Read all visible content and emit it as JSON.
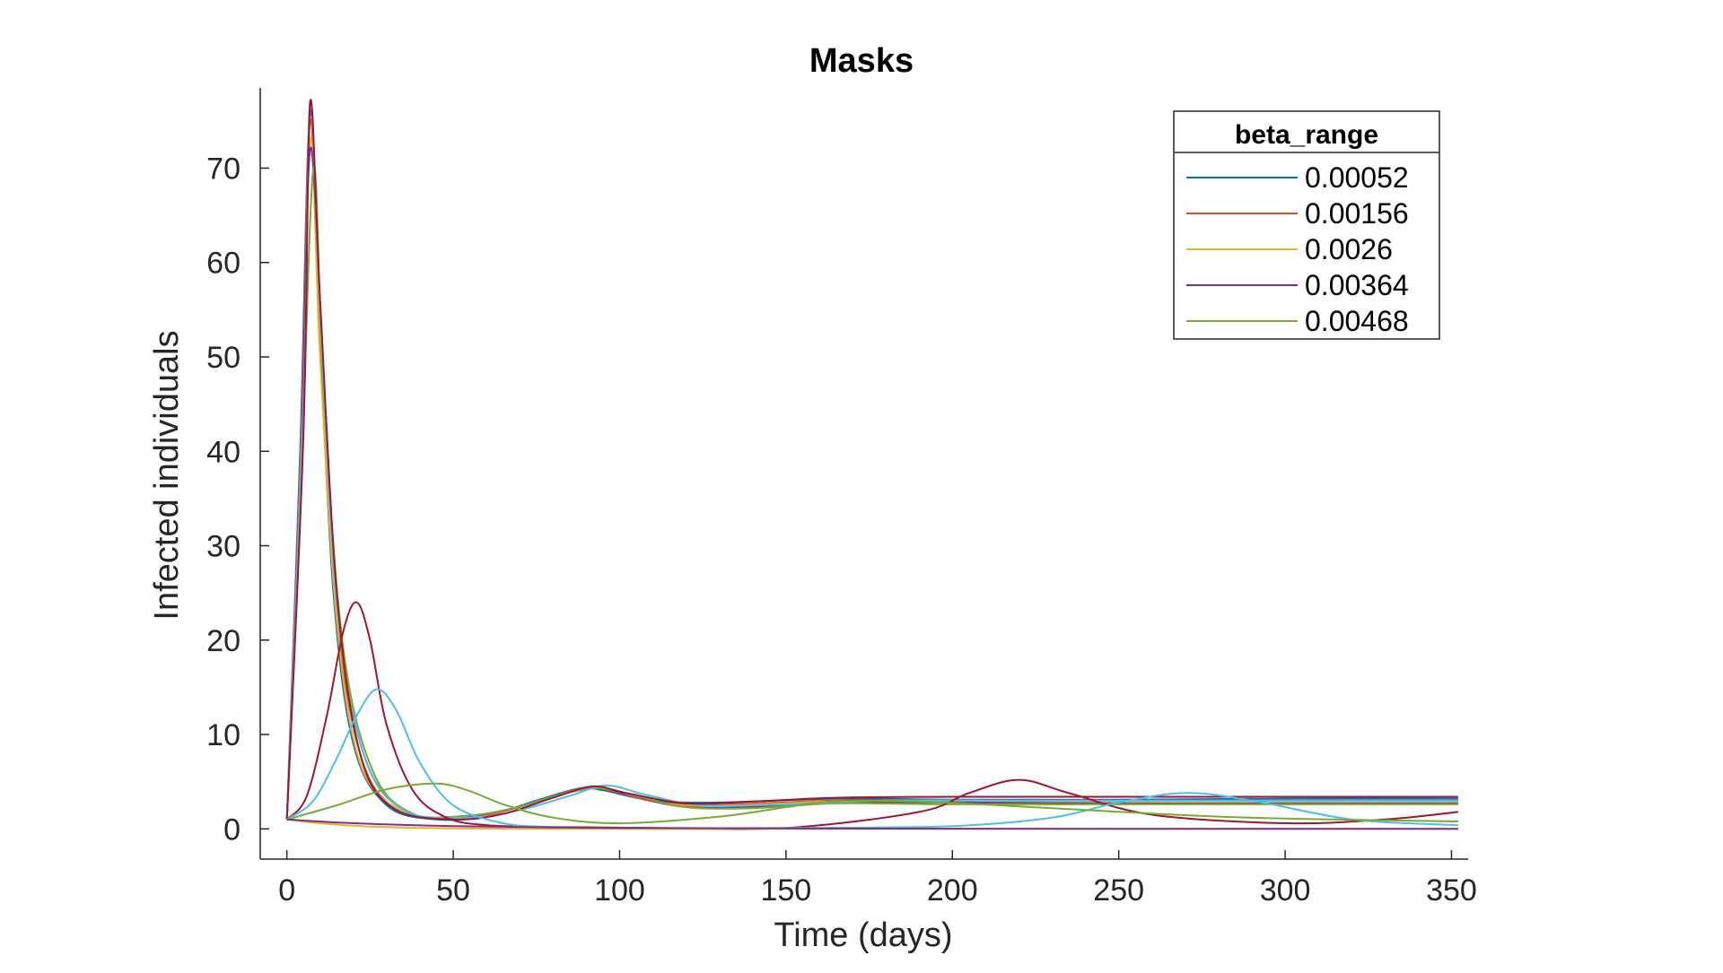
{
  "chart_data": {
    "type": "line",
    "title": "Masks",
    "xlabel": "Time (days)",
    "ylabel": "Infected individuals",
    "xlim": [
      -8,
      355
    ],
    "ylim": [
      -3.2,
      78.5
    ],
    "xticks": [
      0,
      50,
      100,
      150,
      200,
      250,
      300,
      350
    ],
    "yticks": [
      0,
      10,
      20,
      30,
      40,
      50,
      60,
      70
    ],
    "grid": false,
    "legend": {
      "title": "beta_range",
      "placement": "top-right",
      "entries": [
        {
          "label": "0.00052",
          "color": "#0072BD"
        },
        {
          "label": "0.00156",
          "color": "#D95319"
        },
        {
          "label": "0.0026",
          "color": "#EDB120"
        },
        {
          "label": "0.00364",
          "color": "#7E2F8E"
        },
        {
          "label": "0.00468",
          "color": "#77AC30"
        }
      ]
    },
    "series": [
      {
        "color": "#0072BD",
        "x": [
          0,
          4,
          7,
          10,
          14,
          20,
          30,
          45,
          60,
          75,
          88,
          95,
          110,
          130,
          165,
          200,
          250,
          300,
          352
        ],
        "y": [
          1,
          40,
          76,
          52,
          25,
          9,
          2.5,
          1.0,
          1.4,
          3.0,
          4.3,
          4.1,
          3.0,
          2.8,
          3.2,
          3.1,
          3.1,
          3.2,
          3.2
        ]
      },
      {
        "color": "#D95319",
        "x": [
          0,
          4,
          7,
          10,
          15,
          22,
          32,
          48,
          62,
          78,
          90,
          98,
          112,
          132,
          165,
          200,
          250,
          300,
          352
        ],
        "y": [
          1,
          38,
          75,
          51,
          23,
          8,
          2.3,
          1.1,
          1.6,
          3.2,
          4.4,
          4.0,
          2.8,
          2.6,
          3.0,
          3.0,
          3.0,
          3.0,
          3.0
        ]
      },
      {
        "color": "#EDB120",
        "x": [
          0,
          4,
          7,
          10,
          15,
          22,
          34,
          50,
          64,
          80,
          92,
          100,
          115,
          135,
          165,
          200,
          250,
          300,
          352
        ],
        "y": [
          1,
          36,
          73,
          50,
          22,
          7,
          2.0,
          1.2,
          1.8,
          3.4,
          4.5,
          3.9,
          2.6,
          2.5,
          2.9,
          2.9,
          2.9,
          2.9,
          2.9
        ]
      },
      {
        "color": "#7E2F8E",
        "x": [
          0,
          4,
          7,
          11,
          16,
          24,
          36,
          52,
          66,
          82,
          93,
          102,
          118,
          138,
          165,
          200,
          250,
          300,
          352
        ],
        "y": [
          1,
          35,
          72,
          48,
          21,
          7,
          1.8,
          1.3,
          2.0,
          3.6,
          4.4,
          3.7,
          2.4,
          2.3,
          2.8,
          2.8,
          2.7,
          2.7,
          2.7
        ]
      },
      {
        "color": "#77AC30",
        "x": [
          0,
          4,
          8,
          11,
          17,
          26,
          38,
          54,
          68,
          84,
          95,
          105,
          120,
          140,
          165,
          200,
          250,
          300,
          352
        ],
        "y": [
          1,
          33,
          70,
          46,
          19,
          6,
          1.6,
          1.4,
          2.2,
          3.8,
          4.3,
          3.5,
          2.3,
          2.2,
          2.7,
          2.6,
          2.6,
          2.6,
          2.6
        ]
      },
      {
        "color": "#4DBEEE",
        "x": [
          0,
          5,
          7,
          10,
          15,
          23,
          35,
          55,
          70,
          85,
          96,
          108,
          125,
          150,
          180,
          220,
          260,
          300,
          352
        ],
        "y": [
          1,
          45,
          77,
          55,
          24,
          8,
          2.0,
          1.2,
          2.0,
          3.5,
          4.6,
          3.6,
          2.5,
          2.6,
          3.0,
          3.0,
          3.0,
          3.0,
          3.0
        ]
      },
      {
        "color": "#A2142F",
        "x": [
          0,
          5,
          7,
          10,
          15,
          22,
          32,
          50,
          65,
          80,
          92,
          102,
          120,
          140,
          165,
          200,
          250,
          300,
          352
        ],
        "y": [
          1,
          42,
          77,
          56,
          25,
          8,
          2.2,
          1.0,
          1.6,
          3.3,
          4.5,
          3.8,
          2.7,
          2.9,
          3.3,
          3.4,
          3.4,
          3.4,
          3.4
        ]
      },
      {
        "color": "#A2142F",
        "x": [
          0,
          6,
          12,
          17,
          21,
          25,
          30,
          38,
          48,
          60,
          80,
          110,
          150,
          190,
          205,
          220,
          235,
          260,
          300,
          330,
          352
        ],
        "y": [
          1,
          3.5,
          12,
          21,
          24,
          20,
          11,
          4,
          1.2,
          0.4,
          0.2,
          0.1,
          0.1,
          1.8,
          3.8,
          5.2,
          3.8,
          1.5,
          0.6,
          1.0,
          1.8
        ]
      },
      {
        "color": "#4DBEEE",
        "x": [
          0,
          8,
          15,
          21,
          27,
          33,
          40,
          50,
          65,
          80,
          100,
          150,
          200,
          230,
          250,
          270,
          290,
          320,
          352
        ],
        "y": [
          1,
          3,
          7.5,
          12,
          14.8,
          12.5,
          7,
          2.5,
          0.6,
          0.2,
          0.1,
          0.1,
          0.3,
          1.2,
          2.8,
          3.8,
          3.0,
          1.0,
          0.4
        ]
      },
      {
        "color": "#77AC30",
        "x": [
          0,
          15,
          30,
          45,
          55,
          65,
          80,
          100,
          130,
          150,
          165,
          190,
          230,
          280,
          330,
          352
        ],
        "y": [
          1,
          2.5,
          4.2,
          4.8,
          4.0,
          2.6,
          1.2,
          0.6,
          1.3,
          2.3,
          2.9,
          2.9,
          2.2,
          1.3,
          0.9,
          0.8
        ]
      },
      {
        "color": "#EDB120",
        "x": [
          0,
          10,
          25,
          50,
          100,
          150,
          200,
          250,
          300,
          352
        ],
        "y": [
          1,
          0.6,
          0.25,
          0.05,
          0,
          0,
          0,
          0,
          0,
          0
        ]
      },
      {
        "color": "#7E2F8E",
        "x": [
          0,
          20,
          50,
          100,
          150,
          200,
          250,
          300,
          352
        ],
        "y": [
          1,
          0.6,
          0.3,
          0.1,
          0.05,
          0.02,
          0.01,
          0,
          0
        ]
      }
    ]
  }
}
